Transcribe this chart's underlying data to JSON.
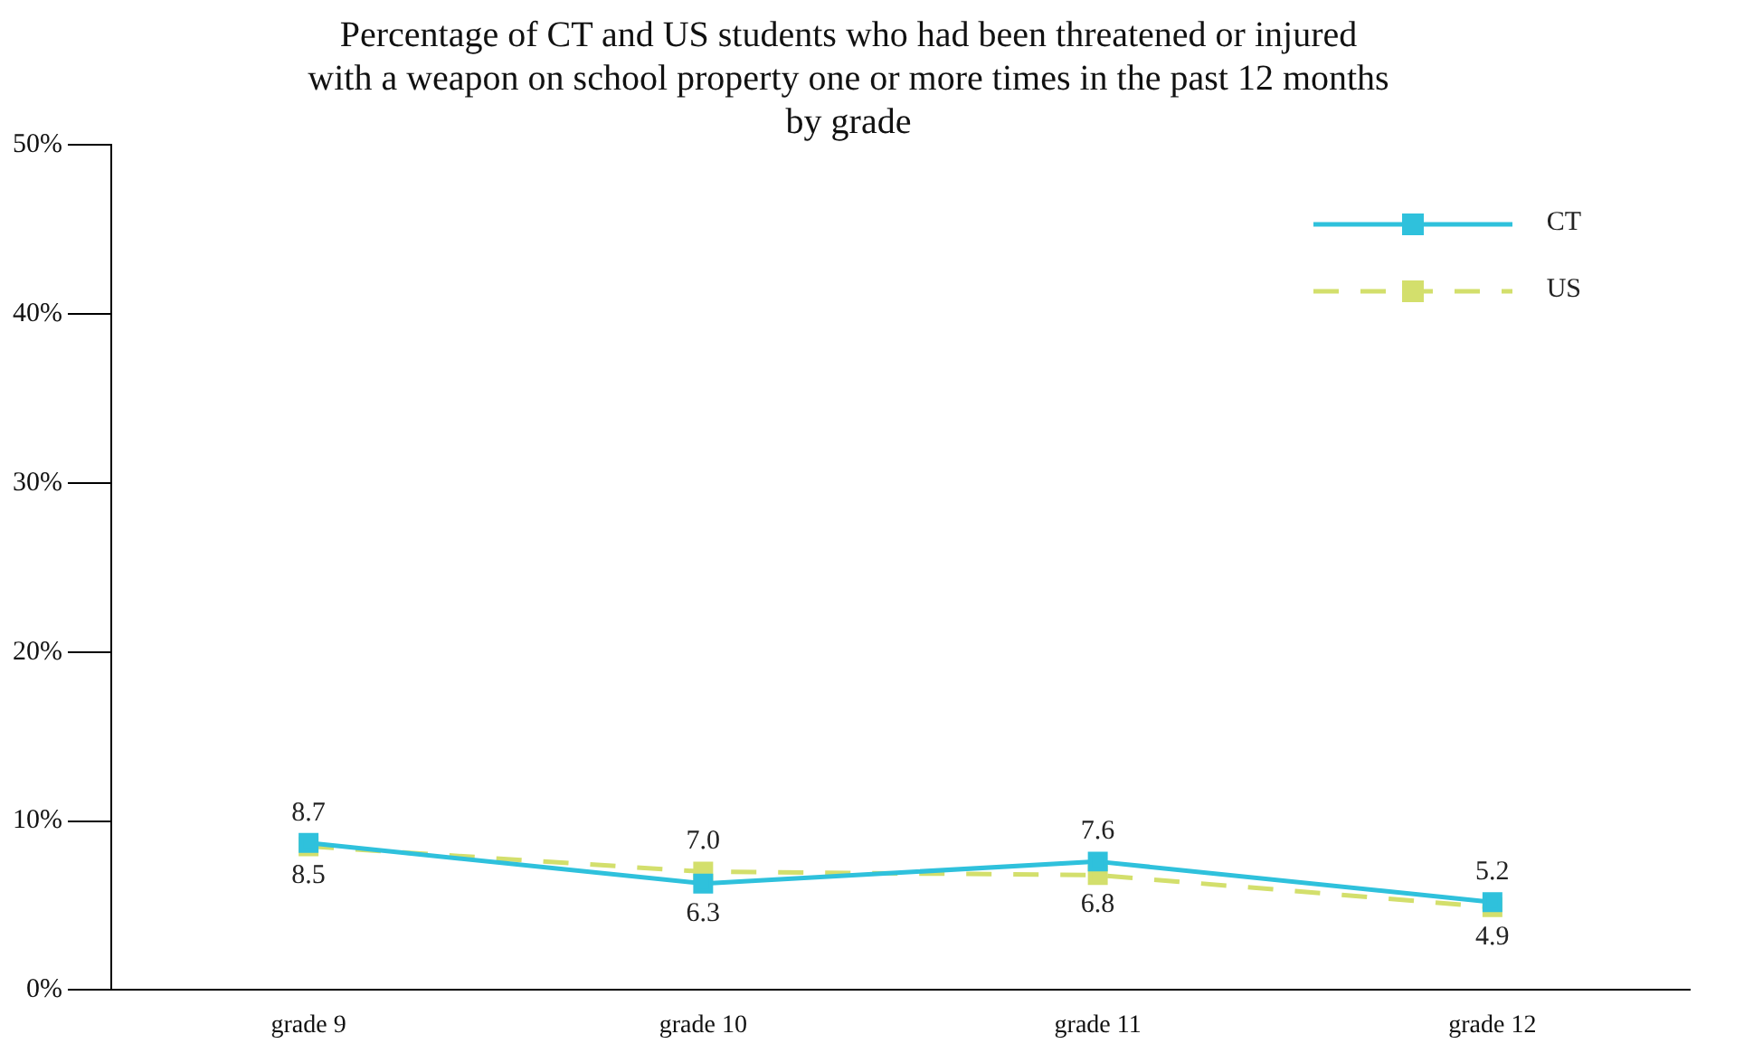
{
  "chart_data": {
    "type": "line",
    "title": "Percentage of CT and US students who had been threatened or injured\nwith a weapon on school property one or more times in the past 12 months\nby grade",
    "categories": [
      "grade 9",
      "grade 10",
      "grade 11",
      "grade 12"
    ],
    "series": [
      {
        "name": "CT",
        "color": "#2fc1dc",
        "values": [
          8.7,
          6.3,
          7.6,
          5.2
        ],
        "value_labels": [
          "8.7",
          "6.3",
          "7.6",
          "5.2"
        ],
        "line_style": "solid"
      },
      {
        "name": "US",
        "color": "#d3df6c",
        "values": [
          8.5,
          7.0,
          6.8,
          4.9
        ],
        "value_labels": [
          "8.5",
          "7.0",
          "6.8",
          "4.9"
        ],
        "line_style": "dashed"
      }
    ],
    "ylim": [
      0,
      50
    ],
    "yticks": [
      {
        "value": 0,
        "label": "0%"
      },
      {
        "value": 10,
        "label": "10%"
      },
      {
        "value": 20,
        "label": "20%"
      },
      {
        "value": 30,
        "label": "30%"
      },
      {
        "value": 40,
        "label": "40%"
      },
      {
        "value": 50,
        "label": "50%"
      }
    ],
    "marker": "square",
    "grid": false,
    "legend": "top right"
  }
}
